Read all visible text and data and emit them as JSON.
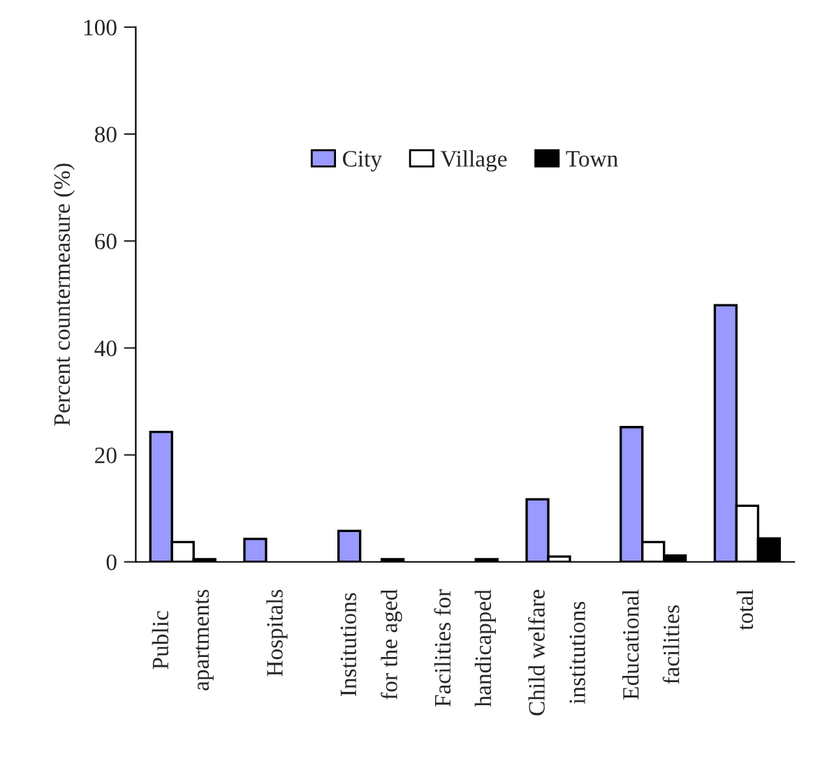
{
  "chart_data": {
    "type": "bar",
    "ylabel": "Percent countermeasure (%)",
    "categories": [
      "Public\napartments",
      "Hospitals",
      "Institutions\nfor the aged",
      "Facilities for\nhandicapped",
      "Child welfare\ninstitutions",
      "Educational\nfacilities",
      "total"
    ],
    "series": [
      {
        "name": "City",
        "color": "#9999ff",
        "values": [
          24.3,
          4.3,
          5.8,
          null,
          11.7,
          25.2,
          48
        ]
      },
      {
        "name": "Village",
        "color": "#ffffff",
        "values": [
          3.7,
          null,
          null,
          null,
          1,
          3.7,
          10.5
        ]
      },
      {
        "name": "Town",
        "color": "#000000",
        "values": [
          0.5,
          null,
          0.5,
          0.5,
          null,
          1.2,
          4.4
        ]
      }
    ],
    "ylim": [
      0,
      100
    ],
    "yticks": [
      0,
      20,
      40,
      60,
      80,
      100
    ],
    "grid": false,
    "legend": "top"
  }
}
